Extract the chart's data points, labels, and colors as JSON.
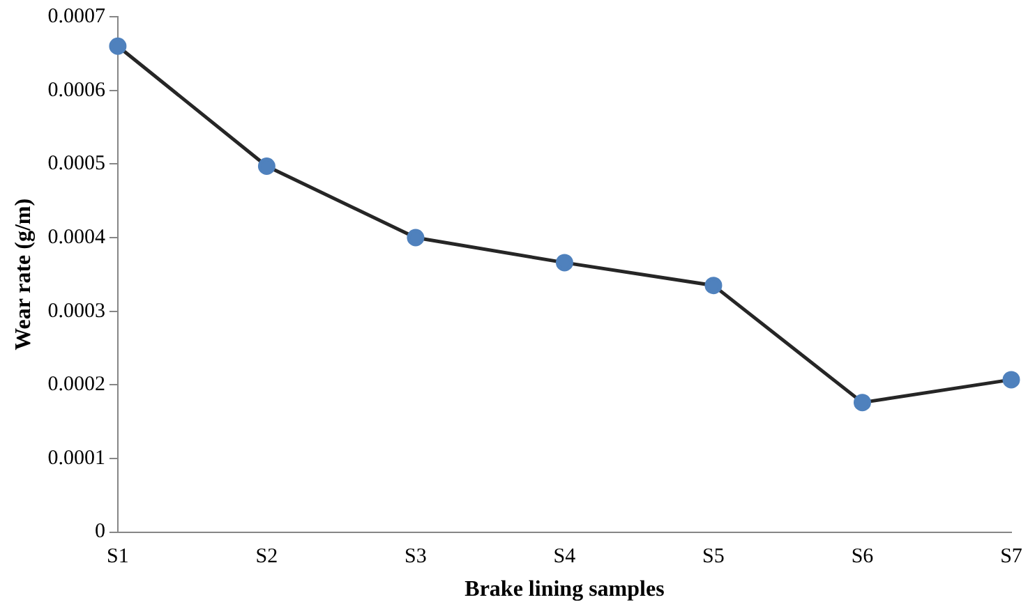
{
  "chart_data": {
    "type": "line",
    "xlabel": "Brake lining samples",
    "ylabel": "Wear rate (g/m)",
    "categories": [
      "S1",
      "S2",
      "S3",
      "S4",
      "S5",
      "S6",
      "S7"
    ],
    "series": [
      {
        "color": "#262626",
        "colors": [
          "#4f81bd",
          "#4f81bd",
          "#4f81bd",
          "#4f81bd",
          "#4f81bd",
          "#4f81bd",
          "#4f81bd"
        ],
        "values": [
          0.00066,
          0.000497,
          0.0004,
          0.000366,
          0.000335,
          0.000176,
          0.000207
        ]
      }
    ],
    "ylim": [
      0,
      0.0007
    ],
    "yticks": [
      0,
      0.0001,
      0.0002,
      0.0003,
      0.0004,
      0.0005,
      0.0006,
      0.0007
    ],
    "grid": false,
    "legend": false,
    "marker": "circle",
    "line_style": "solid"
  }
}
